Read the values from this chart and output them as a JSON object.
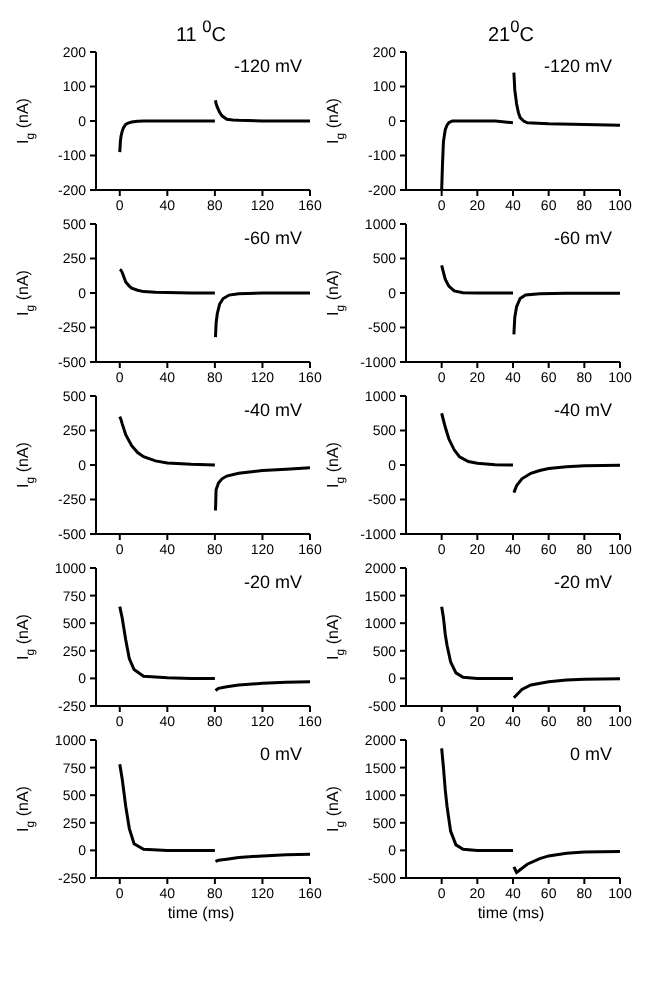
{
  "chart_data": [
    {
      "type": "line",
      "title": "11 $^{0}$C",
      "ylabel": "I$_{g}$ (nA)",
      "annotations": [
        "-120 mV"
      ],
      "color": "#000000",
      "xlim": [
        -20,
        160
      ],
      "xticks": [
        0,
        40,
        80,
        120,
        160
      ],
      "ylim": [
        -200,
        200
      ],
      "yticks": [
        -200,
        -100,
        0,
        100,
        200
      ],
      "x": [
        0,
        0.5,
        1,
        2,
        3,
        5,
        7,
        10,
        15,
        20,
        40,
        60,
        80,
        80.2,
        80.5,
        81,
        82,
        84,
        86,
        90,
        95,
        100,
        120,
        140,
        160
      ],
      "values": [
        -90,
        -60,
        -45,
        -30,
        -20,
        -10,
        -6,
        -3,
        -1,
        0,
        0,
        0,
        0,
        null,
        60,
        50,
        40,
        25,
        15,
        5,
        3,
        2,
        0,
        0,
        0
      ]
    },
    {
      "type": "line",
      "title": "21$^{0}$C",
      "ylabel": "I$_{g}$ (nA)",
      "annotations": [
        "-120 mV"
      ],
      "color": "#000000",
      "xlim": [
        -20,
        100
      ],
      "xticks": [
        0,
        20,
        40,
        60,
        80,
        100
      ],
      "ylim": [
        -200,
        200
      ],
      "yticks": [
        -200,
        -100,
        0,
        100,
        200
      ],
      "x": [
        0,
        0.5,
        1,
        2,
        3,
        4,
        6,
        10,
        20,
        30,
        40,
        40.2,
        40.5,
        41,
        42,
        43,
        44,
        46,
        48,
        60,
        80,
        100
      ],
      "values": [
        -200,
        -120,
        -60,
        -25,
        -12,
        -5,
        0,
        0,
        0,
        0,
        -5,
        null,
        140,
        90,
        50,
        25,
        10,
        0,
        -5,
        -8,
        -10,
        -12
      ]
    },
    {
      "type": "line",
      "ylabel": "I$_{g}$ (nA)",
      "annotations": [
        "-60 mV"
      ],
      "color": "#000000",
      "xlim": [
        -20,
        160
      ],
      "xticks": [
        0,
        40,
        80,
        120,
        160
      ],
      "ylim": [
        -500,
        500
      ],
      "yticks": [
        -500,
        -250,
        0,
        250,
        500
      ],
      "x": [
        0,
        1,
        2,
        5,
        8,
        10,
        15,
        20,
        30,
        40,
        60,
        80,
        80.2,
        80.5,
        81,
        82,
        84,
        87,
        92,
        100,
        120,
        140,
        160
      ],
      "values": [
        170,
        165,
        150,
        80,
        50,
        35,
        20,
        10,
        5,
        3,
        0,
        0,
        null,
        -320,
        -220,
        -150,
        -80,
        -40,
        -15,
        -5,
        0,
        0,
        0
      ]
    },
    {
      "type": "line",
      "ylabel": "I$_{g}$ (nA)",
      "annotations": [
        "-60 mV"
      ],
      "color": "#000000",
      "xlim": [
        -20,
        100
      ],
      "xticks": [
        0,
        20,
        40,
        60,
        80,
        100
      ],
      "ylim": [
        -1000,
        1000
      ],
      "yticks": [
        -1000,
        -500,
        0,
        500,
        1000
      ],
      "x": [
        0,
        1,
        2,
        4,
        7,
        12,
        20,
        30,
        40,
        40.2,
        40.5,
        41,
        42,
        44,
        47,
        55,
        70,
        100
      ],
      "values": [
        400,
        300,
        200,
        100,
        30,
        5,
        0,
        0,
        0,
        null,
        -600,
        -350,
        -200,
        -80,
        -30,
        -10,
        -5,
        -5
      ]
    },
    {
      "type": "line",
      "ylabel": "I$_{g}$ (nA)",
      "annotations": [
        "-40 mV"
      ],
      "color": "#000000",
      "xlim": [
        -20,
        160
      ],
      "xticks": [
        0,
        40,
        80,
        120,
        160
      ],
      "ylim": [
        -500,
        500
      ],
      "yticks": [
        -500,
        -250,
        0,
        250,
        500
      ],
      "x": [
        0,
        1,
        2,
        5,
        10,
        15,
        20,
        30,
        40,
        60,
        80,
        80.2,
        80.5,
        81,
        83,
        86,
        90,
        100,
        120,
        140,
        160
      ],
      "values": [
        350,
        330,
        300,
        220,
        140,
        90,
        60,
        30,
        15,
        5,
        0,
        null,
        -330,
        -180,
        -130,
        -100,
        -80,
        -60,
        -40,
        -30,
        -20
      ]
    },
    {
      "type": "line",
      "ylabel": "I$_{g}$ (nA)",
      "annotations": [
        "-40 mV"
      ],
      "color": "#000000",
      "xlim": [
        -20,
        100
      ],
      "xticks": [
        0,
        20,
        40,
        60,
        80,
        100
      ],
      "ylim": [
        -1000,
        1000
      ],
      "yticks": [
        -1000,
        -500,
        0,
        500,
        1000
      ],
      "x": [
        0,
        2,
        4,
        7,
        10,
        15,
        20,
        30,
        40,
        40.2,
        40.5,
        42,
        45,
        50,
        55,
        60,
        70,
        80,
        100
      ],
      "values": [
        750,
        550,
        380,
        220,
        120,
        50,
        25,
        5,
        0,
        null,
        -400,
        -300,
        -200,
        -120,
        -80,
        -50,
        -25,
        -10,
        -5
      ]
    },
    {
      "type": "line",
      "ylabel": "I$_{g}$ (nA)",
      "annotations": [
        "-20 mV"
      ],
      "color": "#000000",
      "xlim": [
        -20,
        160
      ],
      "xticks": [
        0,
        40,
        80,
        120,
        160
      ],
      "ylim": [
        -250,
        1000
      ],
      "yticks": [
        -250,
        0,
        250,
        500,
        750,
        1000
      ],
      "x": [
        0,
        2,
        5,
        8,
        12,
        20,
        40,
        60,
        80,
        80.2,
        80.5,
        83,
        90,
        100,
        120,
        140,
        160
      ],
      "values": [
        650,
        550,
        350,
        180,
        80,
        20,
        5,
        0,
        0,
        null,
        -110,
        -90,
        -75,
        -60,
        -45,
        -35,
        -30
      ]
    },
    {
      "type": "line",
      "ylabel": "I$_{g}$ (nA)",
      "annotations": [
        "-20 mV"
      ],
      "color": "#000000",
      "xlim": [
        -20,
        100
      ],
      "xticks": [
        0,
        20,
        40,
        60,
        80,
        100
      ],
      "ylim": [
        -500,
        2000
      ],
      "yticks": [
        -500,
        0,
        500,
        1000,
        1500,
        2000
      ],
      "x": [
        0,
        1,
        2,
        3,
        5,
        8,
        12,
        20,
        40,
        40.2,
        40.5,
        42,
        45,
        50,
        60,
        70,
        80,
        100
      ],
      "values": [
        1300,
        1100,
        800,
        600,
        300,
        100,
        20,
        0,
        0,
        null,
        -350,
        -300,
        -200,
        -120,
        -60,
        -30,
        -15,
        -5
      ]
    },
    {
      "type": "line",
      "ylabel": "I$_{g}$ (nA)",
      "xlabel": "time (ms)",
      "annotations": [
        "0 mV"
      ],
      "color": "#000000",
      "xlim": [
        -20,
        160
      ],
      "xticks": [
        0,
        40,
        80,
        120,
        160
      ],
      "ylim": [
        -250,
        1000
      ],
      "yticks": [
        -250,
        0,
        250,
        500,
        750,
        1000
      ],
      "x": [
        0,
        2,
        5,
        8,
        12,
        20,
        40,
        80,
        80.2,
        80.5,
        83,
        90,
        100,
        120,
        140,
        160
      ],
      "values": [
        780,
        650,
        400,
        200,
        60,
        10,
        0,
        0,
        null,
        -100,
        -90,
        -80,
        -65,
        -50,
        -40,
        -35
      ]
    },
    {
      "type": "line",
      "ylabel": "I$_{g}$ (nA)",
      "xlabel": "time (ms)",
      "annotations": [
        "0 mV"
      ],
      "color": "#000000",
      "xlim": [
        -20,
        100
      ],
      "xticks": [
        0,
        20,
        40,
        60,
        80,
        100
      ],
      "ylim": [
        -500,
        2000
      ],
      "yticks": [
        -500,
        0,
        500,
        1000,
        1500,
        2000
      ],
      "x": [
        0,
        1,
        2,
        3,
        5,
        8,
        12,
        20,
        40,
        40.2,
        40.5,
        42,
        44,
        48,
        55,
        60,
        70,
        80,
        100
      ],
      "values": [
        1850,
        1500,
        1100,
        800,
        350,
        100,
        20,
        0,
        0,
        null,
        -300,
        -400,
        -350,
        -250,
        -150,
        -100,
        -50,
        -30,
        -20
      ]
    }
  ]
}
